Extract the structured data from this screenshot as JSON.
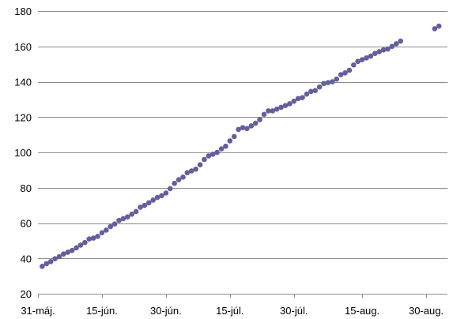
{
  "chart_data": {
    "type": "scatter",
    "title": "",
    "xlabel": "",
    "ylabel": "",
    "grid": true,
    "legend": "none",
    "marker_color": "#62609a",
    "xlim": [
      "2014-05-31",
      "2014-09-04"
    ],
    "ylim": [
      20,
      180
    ],
    "y_ticks": [
      20,
      40,
      60,
      80,
      100,
      120,
      140,
      160,
      180
    ],
    "x_ticks": [
      {
        "date": "2014-05-31",
        "label": "31-máj."
      },
      {
        "date": "2014-06-15",
        "label": "15-jún."
      },
      {
        "date": "2014-06-30",
        "label": "30-jún."
      },
      {
        "date": "2014-07-15",
        "label": "15-júl."
      },
      {
        "date": "2014-07-30",
        "label": "30-júl."
      },
      {
        "date": "2014-08-15",
        "label": "15-aug."
      },
      {
        "date": "2014-08-30",
        "label": "30-aug."
      }
    ],
    "points": [
      [
        "2014-06-01",
        35.5
      ],
      [
        "2014-06-02",
        37
      ],
      [
        "2014-06-03",
        38.2
      ],
      [
        "2014-06-04",
        39.8
      ],
      [
        "2014-06-05",
        41
      ],
      [
        "2014-06-06",
        42.5
      ],
      [
        "2014-06-07",
        43.5
      ],
      [
        "2014-06-08",
        44.5
      ],
      [
        "2014-06-09",
        46
      ],
      [
        "2014-06-10",
        47.5
      ],
      [
        "2014-06-11",
        49
      ],
      [
        "2014-06-12",
        51
      ],
      [
        "2014-06-13",
        51.5
      ],
      [
        "2014-06-14",
        52.5
      ],
      [
        "2014-06-15",
        54.5
      ],
      [
        "2014-06-16",
        56
      ],
      [
        "2014-06-17",
        58
      ],
      [
        "2014-06-18",
        59.5
      ],
      [
        "2014-06-19",
        61.5
      ],
      [
        "2014-06-20",
        62.5
      ],
      [
        "2014-06-21",
        63.5
      ],
      [
        "2014-06-22",
        65
      ],
      [
        "2014-06-23",
        66.5
      ],
      [
        "2014-06-24",
        69
      ],
      [
        "2014-06-25",
        70
      ],
      [
        "2014-06-26",
        71.5
      ],
      [
        "2014-06-27",
        73
      ],
      [
        "2014-06-28",
        74.5
      ],
      [
        "2014-06-29",
        75.5
      ],
      [
        "2014-06-30",
        77
      ],
      [
        "2014-07-01",
        79.5
      ],
      [
        "2014-07-02",
        82.5
      ],
      [
        "2014-07-03",
        84.5
      ],
      [
        "2014-07-04",
        86
      ],
      [
        "2014-07-05",
        88.5
      ],
      [
        "2014-07-06",
        89.5
      ],
      [
        "2014-07-07",
        90.5
      ],
      [
        "2014-07-08",
        93
      ],
      [
        "2014-07-09",
        96
      ],
      [
        "2014-07-10",
        98
      ],
      [
        "2014-07-11",
        99
      ],
      [
        "2014-07-12",
        100
      ],
      [
        "2014-07-13",
        102
      ],
      [
        "2014-07-14",
        103.5
      ],
      [
        "2014-07-15",
        106.5
      ],
      [
        "2014-07-16",
        109
      ],
      [
        "2014-07-17",
        113
      ],
      [
        "2014-07-18",
        114
      ],
      [
        "2014-07-19",
        113.5
      ],
      [
        "2014-07-20",
        115
      ],
      [
        "2014-07-21",
        116.5
      ],
      [
        "2014-07-22",
        118.5
      ],
      [
        "2014-07-23",
        121.5
      ],
      [
        "2014-07-24",
        123.5
      ],
      [
        "2014-07-25",
        123.5
      ],
      [
        "2014-07-26",
        124.5
      ],
      [
        "2014-07-27",
        125.5
      ],
      [
        "2014-07-28",
        126.5
      ],
      [
        "2014-07-29",
        127.5
      ],
      [
        "2014-07-30",
        129
      ],
      [
        "2014-07-31",
        130.5
      ],
      [
        "2014-08-01",
        131
      ],
      [
        "2014-08-02",
        133
      ],
      [
        "2014-08-03",
        134.5
      ],
      [
        "2014-08-04",
        135
      ],
      [
        "2014-08-05",
        137
      ],
      [
        "2014-08-06",
        139
      ],
      [
        "2014-08-07",
        139.5
      ],
      [
        "2014-08-08",
        140
      ],
      [
        "2014-08-09",
        141.5
      ],
      [
        "2014-08-10",
        144
      ],
      [
        "2014-08-11",
        145
      ],
      [
        "2014-08-12",
        146.5
      ],
      [
        "2014-08-13",
        149.5
      ],
      [
        "2014-08-14",
        151.5
      ],
      [
        "2014-08-15",
        152.5
      ],
      [
        "2014-08-16",
        153.5
      ],
      [
        "2014-08-17",
        154.5
      ],
      [
        "2014-08-18",
        156
      ],
      [
        "2014-08-19",
        157
      ],
      [
        "2014-08-20",
        158
      ],
      [
        "2014-08-21",
        158.5
      ],
      [
        "2014-08-22",
        160
      ],
      [
        "2014-08-23",
        161.5
      ],
      [
        "2014-08-24",
        163
      ],
      [
        "2014-09-01",
        170
      ],
      [
        "2014-09-02",
        171.5
      ]
    ]
  }
}
